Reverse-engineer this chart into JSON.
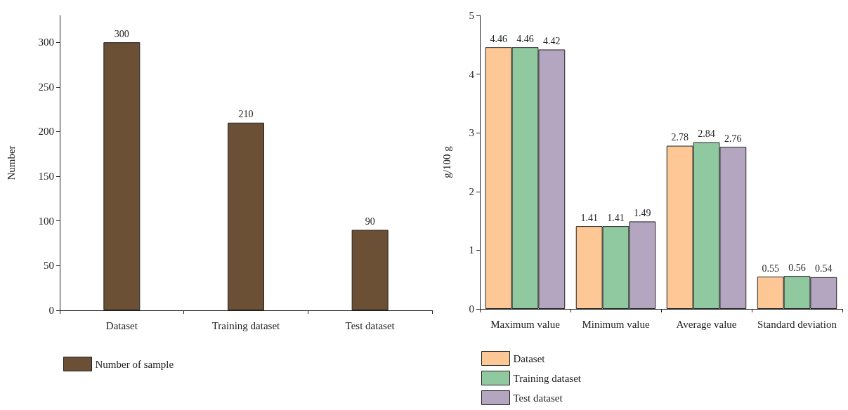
{
  "chart_data": [
    {
      "type": "bar",
      "ylabel": "Number",
      "categories": [
        "Dataset",
        "Training dataset",
        "Test dataset"
      ],
      "series": [
        {
          "name": "Number of sample",
          "color": "#6b5035",
          "values": [
            300,
            210,
            90
          ]
        }
      ],
      "ylim": [
        0,
        330
      ],
      "yticks": [
        0,
        50,
        100,
        150,
        200,
        250,
        300
      ],
      "grid": false,
      "legend": "bottom left",
      "data_labels": true
    },
    {
      "type": "bar",
      "ylabel": "g/100 g",
      "categories": [
        "Maximum value",
        "Minimum value",
        "Average value",
        "Standard deviation"
      ],
      "series": [
        {
          "name": "Dataset",
          "color": "#fdc896",
          "values": [
            4.46,
            1.41,
            2.78,
            0.55
          ]
        },
        {
          "name": "Training dataset",
          "color": "#90c9a0",
          "values": [
            4.46,
            1.41,
            2.84,
            0.56
          ]
        },
        {
          "name": "Test dataset",
          "color": "#b4a6c0",
          "values": [
            4.42,
            1.49,
            2.76,
            0.54
          ]
        }
      ],
      "ylim": [
        0,
        5
      ],
      "yticks": [
        0,
        1,
        2,
        3,
        4,
        5
      ],
      "grid": false,
      "legend": "bottom left",
      "data_labels": true
    }
  ]
}
